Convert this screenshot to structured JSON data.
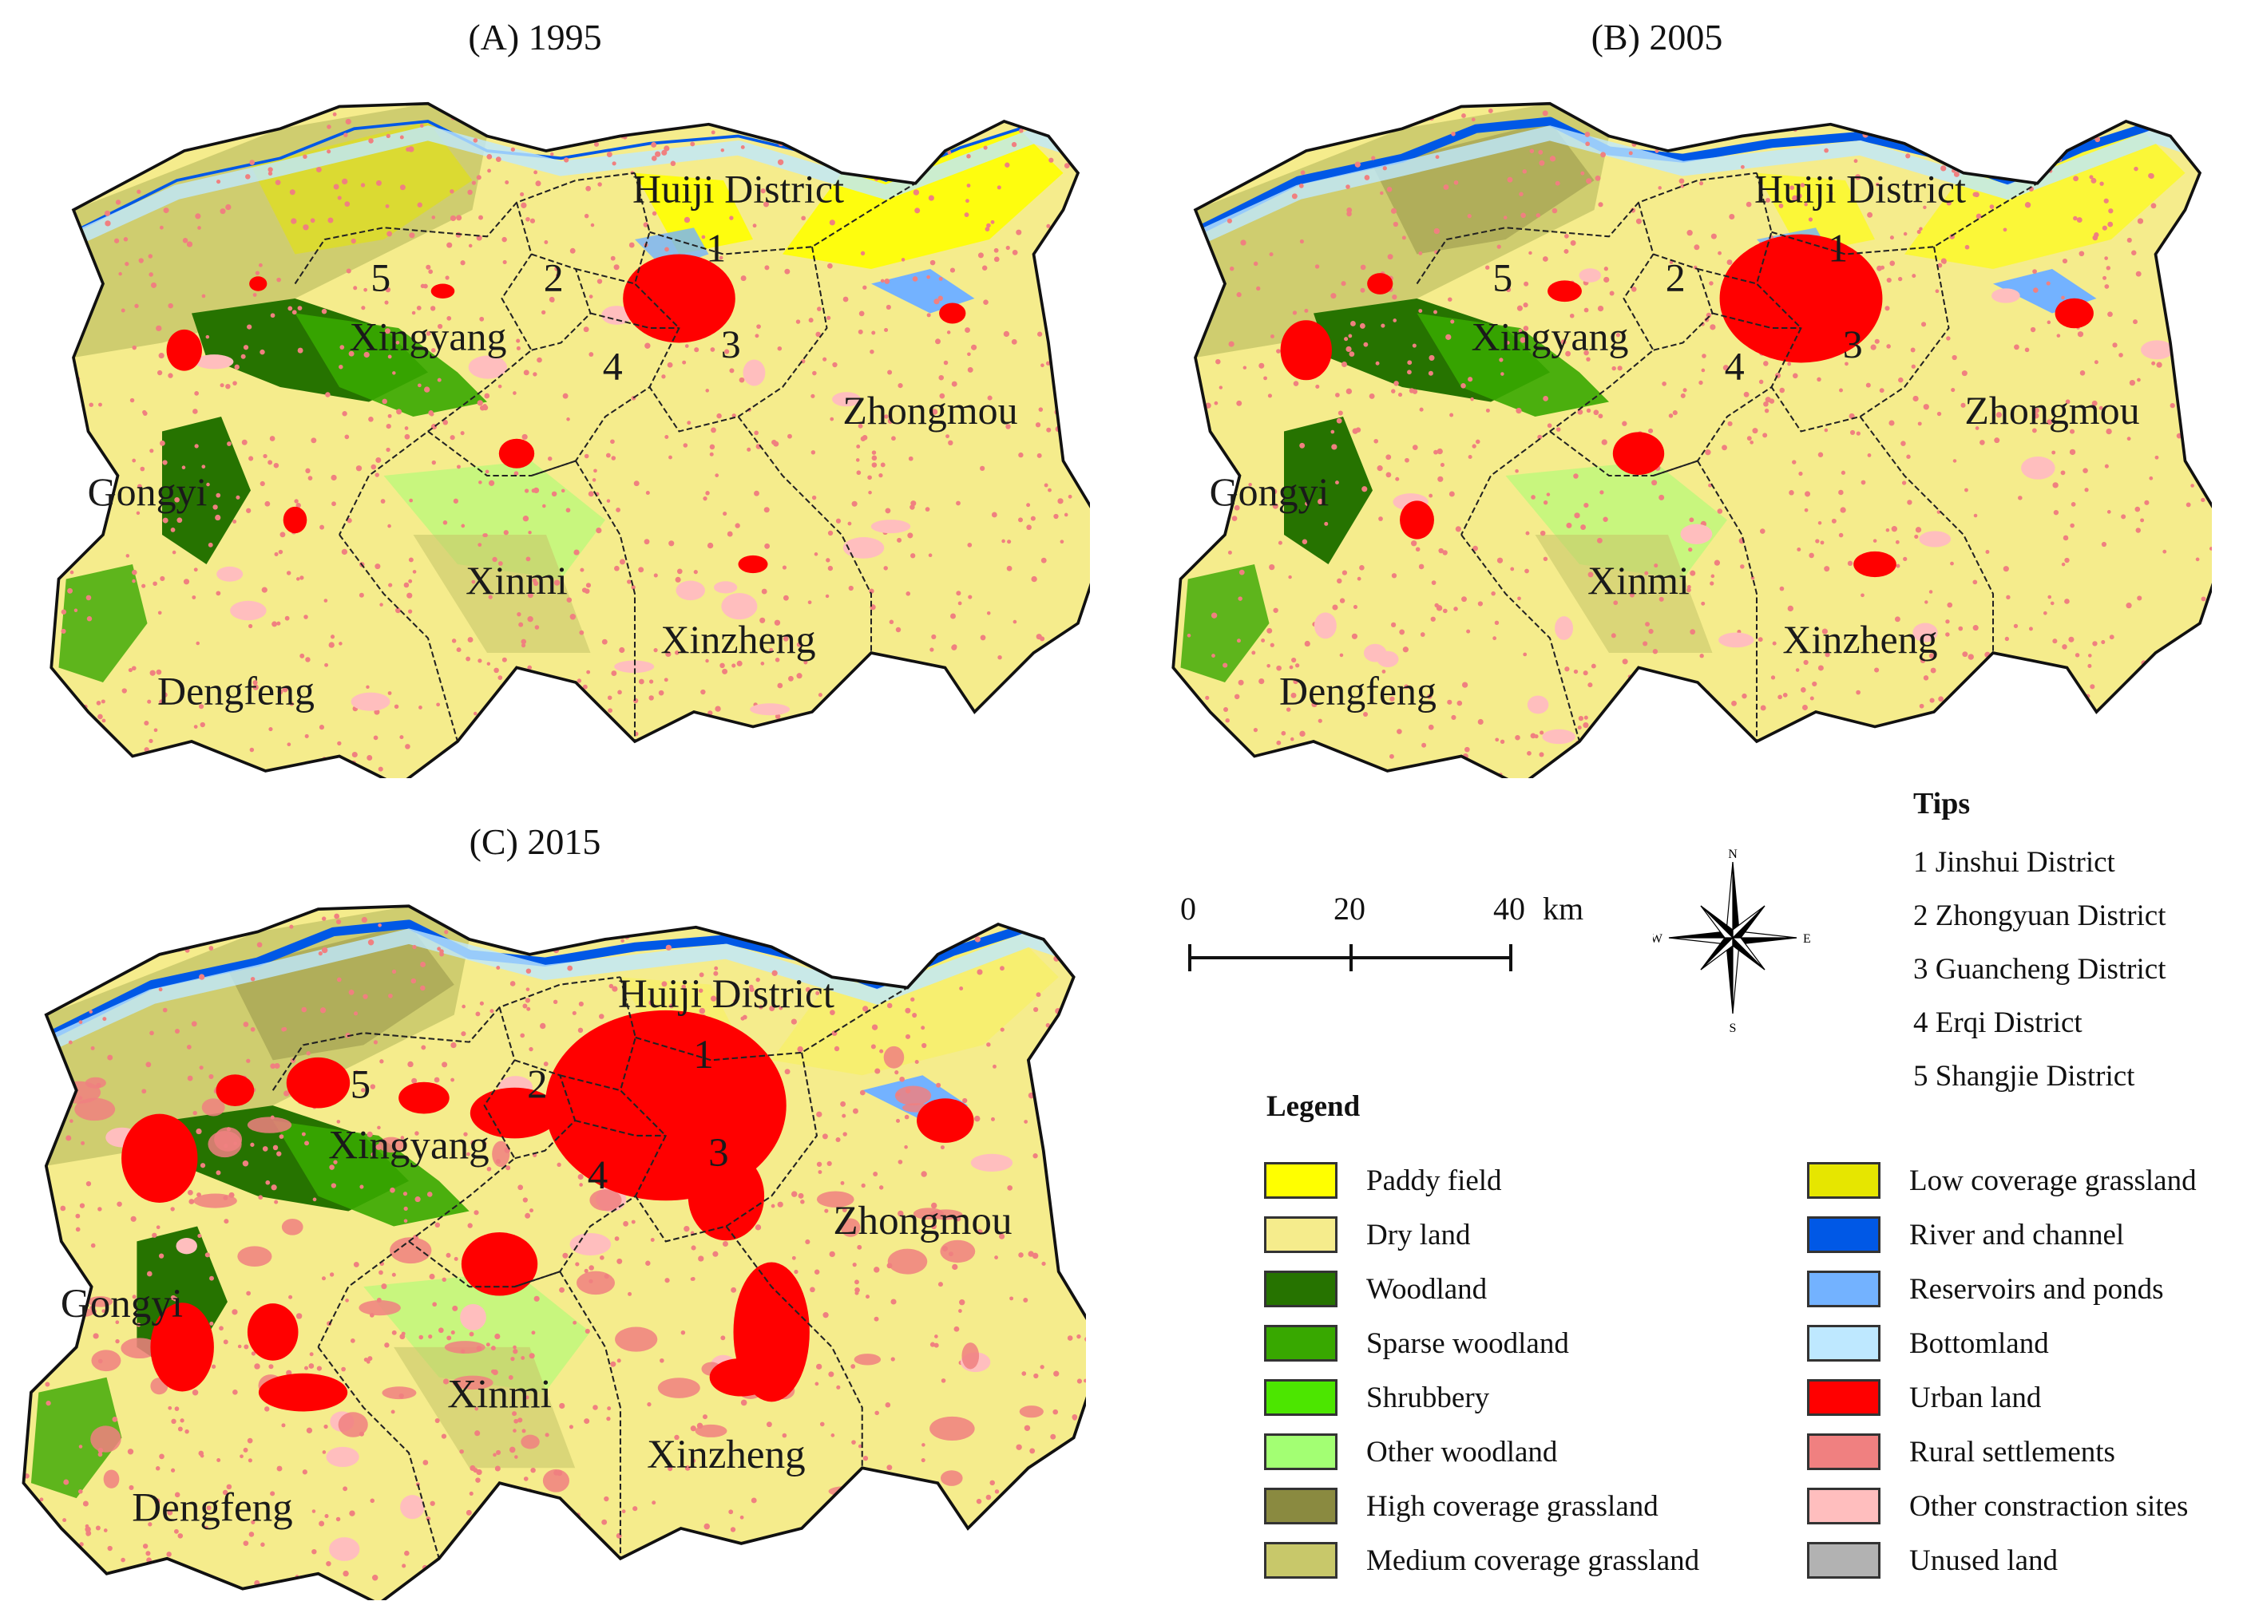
{
  "panels": {
    "a_title": "(A) 1995",
    "b_title": "(B) 2005",
    "c_title": "(C) 2015"
  },
  "map_labels": {
    "huiji": "Huiji District",
    "xingyang": "Xingyang",
    "zhongmou": "Zhongmou",
    "gongyi": "Gongyi",
    "xinmi": "Xinmi",
    "xinzheng": "Xinzheng",
    "dengfeng": "Dengfeng"
  },
  "district_numbers": [
    "1",
    "2",
    "3",
    "4",
    "5"
  ],
  "scale_bar": {
    "tick_0": "0",
    "tick_20": "20",
    "tick_40": "40",
    "unit": "km"
  },
  "compass": {
    "n": "N",
    "s": "S",
    "e": "E",
    "w": "W"
  },
  "tips": {
    "title": "Tips",
    "items": [
      "1 Jinshui District",
      "2 Zhongyuan District",
      "3 Guancheng District",
      "4 Erqi District",
      "5 Shangjie District"
    ]
  },
  "legend": {
    "title": "Legend",
    "col1": [
      {
        "label": "Paddy field",
        "color": "#ffff00"
      },
      {
        "label": "Dry land",
        "color": "#f5ec8c"
      },
      {
        "label": "Woodland",
        "color": "#267300"
      },
      {
        "label": "Sparse woodland",
        "color": "#38a800"
      },
      {
        "label": "Shrubbery",
        "color": "#4ce600"
      },
      {
        "label": "Other woodland",
        "color": "#a3ff73"
      },
      {
        "label": "High coverage grassland",
        "color": "#8a8a40"
      },
      {
        "label": "Medium coverage grassland",
        "color": "#c8c86a"
      }
    ],
    "col2": [
      {
        "label": "Low coverage grassland",
        "color": "#e6e600"
      },
      {
        "label": "River and channel",
        "color": "#0058e6"
      },
      {
        "label": "Reservoirs and ponds",
        "color": "#73b2ff"
      },
      {
        "label": "Bottomland",
        "color": "#bee8ff"
      },
      {
        "label": "Urban land",
        "color": "#ff0000"
      },
      {
        "label": "Rural settlements",
        "color": "#f08080"
      },
      {
        "label": "Other constraction sites",
        "color": "#ffbebe"
      },
      {
        "label": "Unused land",
        "color": "#b2b2b2"
      }
    ]
  },
  "colors": {
    "dry_land": "#f5ec8c",
    "paddy": "#ffff00",
    "woodland": "#267300",
    "sparse_woodland": "#38a800",
    "shrubbery": "#4ce600",
    "other_woodland": "#a3ff73",
    "high_grass": "#8a8a40",
    "medium_grass": "#c8c86a",
    "low_grass": "#e6e600",
    "river": "#0058e6",
    "reservoir": "#73b2ff",
    "bottomland": "#bee8ff",
    "urban": "#ff0000",
    "rural": "#f08080",
    "other_construction": "#ffbebe"
  }
}
